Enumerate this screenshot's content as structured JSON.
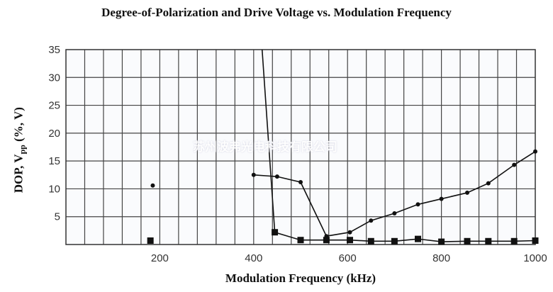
{
  "chart_data": {
    "type": "line",
    "title": "Degree-of-Polarization and Drive Voltage vs. Modulation Frequency",
    "xlabel": "Modulation Frequency (kHz)",
    "ylabel_main": "DOP, V",
    "ylabel_sub": "pp",
    "ylabel_tail": " (%, V)",
    "xlim": [
      0,
      1000
    ],
    "ylim": [
      0,
      35
    ],
    "x_ticks": [
      200,
      400,
      600,
      800,
      1000
    ],
    "y_ticks": [
      5,
      10,
      15,
      20,
      25,
      30,
      35
    ],
    "x_grid_step": 40,
    "y_grid_step": 5,
    "grid": true,
    "series": [
      {
        "marker": "circle",
        "isolated_points": [
          [
            185,
            10.6
          ]
        ],
        "x": [
          400,
          450,
          500,
          555,
          605,
          650,
          700,
          750,
          800,
          855,
          900,
          955,
          1000
        ],
        "y": [
          12.5,
          12.2,
          11.2,
          1.5,
          2.2,
          4.3,
          5.6,
          7.2,
          8.2,
          9.3,
          11.0,
          14.3,
          16.7
        ]
      },
      {
        "marker": "square",
        "isolated_points": [
          [
            180,
            0.7
          ]
        ],
        "line_start": [
          418,
          35
        ],
        "x": [
          445,
          500,
          555,
          605,
          650,
          700,
          750,
          800,
          855,
          900,
          955,
          1000
        ],
        "y": [
          2.2,
          0.8,
          0.8,
          0.8,
          0.6,
          0.6,
          1.0,
          0.5,
          0.6,
          0.6,
          0.6,
          0.7
        ]
      }
    ]
  },
  "watermark": "苏州波弗光电科技有限公司"
}
